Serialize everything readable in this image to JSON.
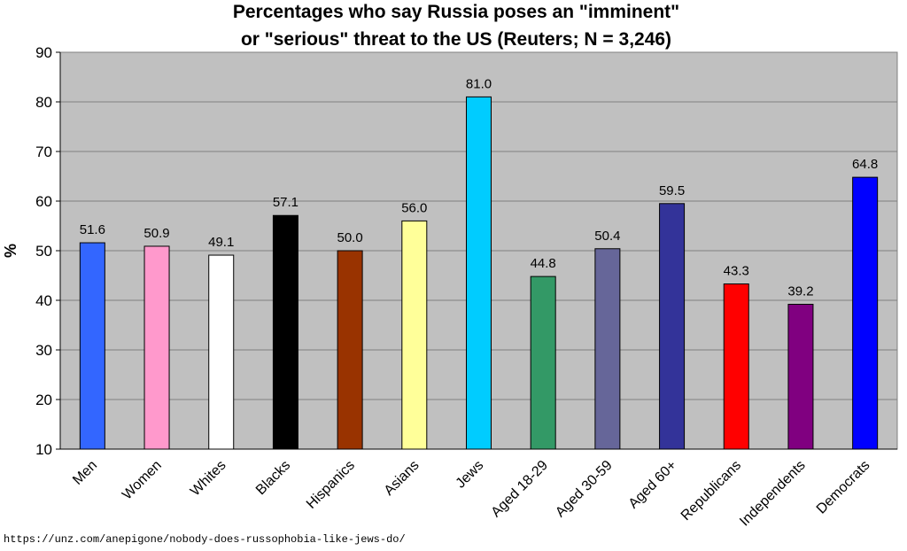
{
  "chart_data": {
    "type": "bar",
    "title": [
      "Percentages who say Russia poses an \"imminent\"",
      "or \"serious\" threat to the US (Reuters; N = 3,246)"
    ],
    "xlabel": "",
    "ylabel": "%",
    "ylim": [
      10,
      90
    ],
    "yticks": [
      10,
      20,
      30,
      40,
      50,
      60,
      70,
      80,
      90
    ],
    "grid": true,
    "categories": [
      "Men",
      "Women",
      "Whites",
      "Blacks",
      "Hispanics",
      "Asians",
      "Jews",
      "Aged 18-29",
      "Aged 30-59",
      "Aged 60+",
      "Republicans",
      "Independents",
      "Democrats"
    ],
    "values": [
      51.6,
      50.9,
      49.1,
      57.1,
      50.0,
      56.0,
      81.0,
      44.8,
      50.4,
      59.5,
      43.3,
      39.2,
      64.8
    ],
    "data_labels": [
      "51.6",
      "50.9",
      "49.1",
      "57.1",
      "50.0",
      "56.0",
      "81.0",
      "44.8",
      "50.4",
      "59.5",
      "43.3",
      "39.2",
      "64.8"
    ],
    "colors": [
      "#3366ff",
      "#ff99cc",
      "#ffffff",
      "#000000",
      "#993300",
      "#ffff99",
      "#00ccff",
      "#339966",
      "#666699",
      "#333399",
      "#ff0000",
      "#800080",
      "#0000ff"
    ]
  },
  "source_url": "https://unz.com/anepigone/nobody-does-russophobia-like-jews-do/"
}
